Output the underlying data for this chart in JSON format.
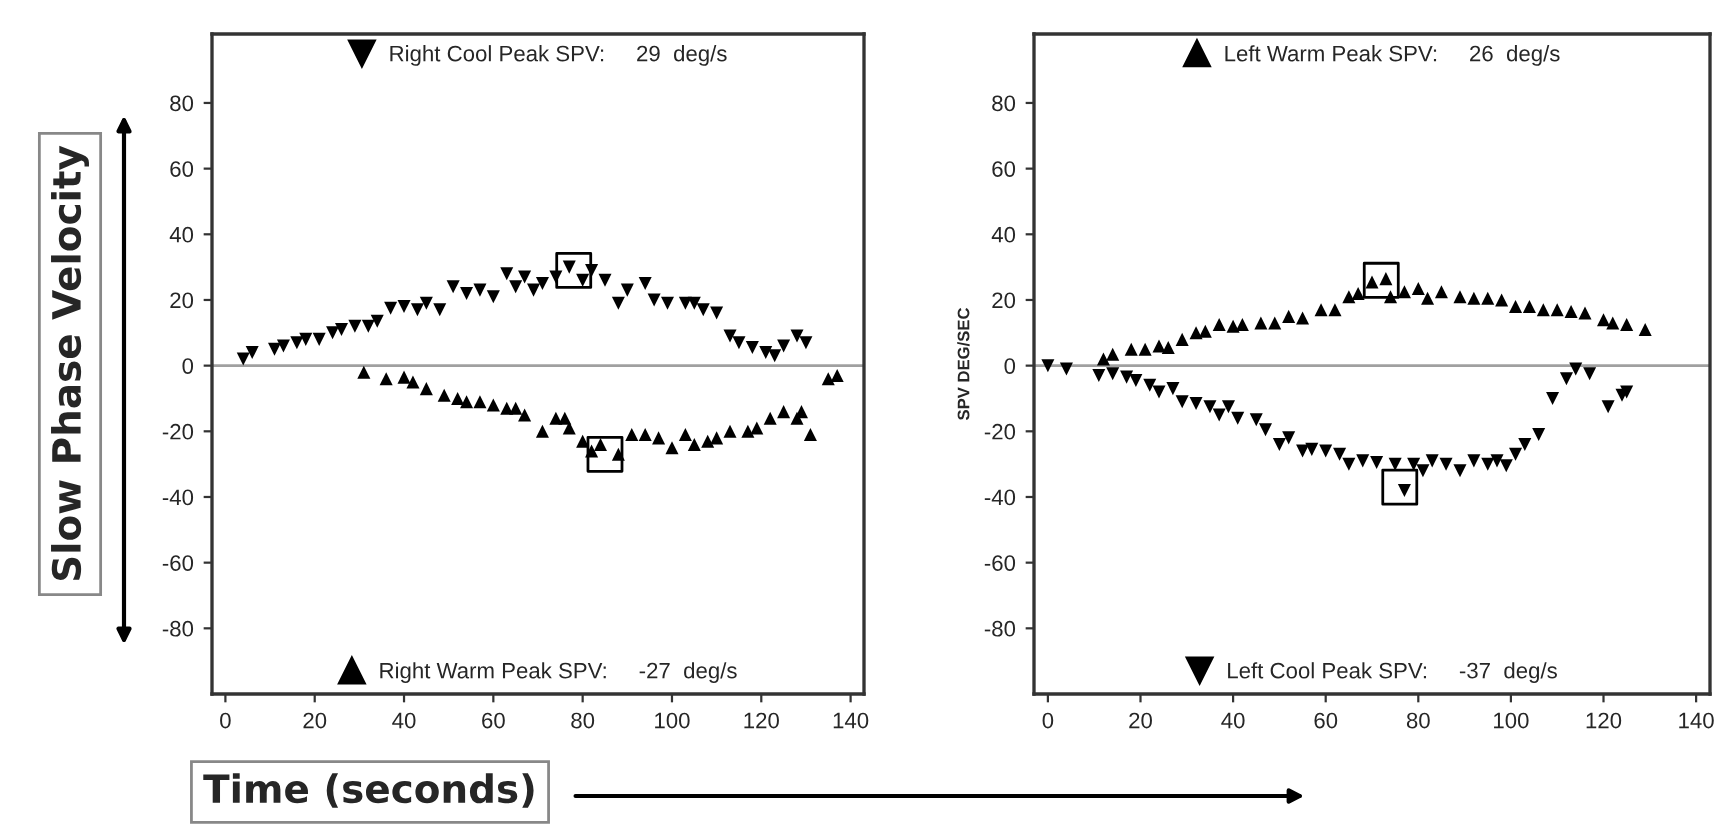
{
  "chart_data": [
    {
      "type": "scatter",
      "xlabel": "Time (seconds)",
      "ylabel": "Slow Phase Velocity",
      "xlim": [
        -3,
        143
      ],
      "ylim": [
        -100,
        101
      ],
      "xticks": [
        0,
        20,
        40,
        60,
        80,
        100,
        120,
        140
      ],
      "yticks": [
        -80,
        -60,
        -40,
        -20,
        0,
        20,
        40,
        60,
        80
      ],
      "legend": [
        "top",
        "bottom"
      ],
      "grid": false,
      "ref_lines": [
        {
          "axis": "y",
          "value": 0,
          "color": "#a0a0a0"
        }
      ],
      "series": [
        {
          "name": "Right Cool Peak SPV:     29  deg/s",
          "color": "#000000",
          "marker": "triangle_down",
          "x": [
            4,
            6,
            11,
            13,
            16,
            18,
            21,
            24,
            26,
            29,
            32,
            34,
            37,
            40,
            43,
            45,
            48,
            51,
            54,
            57,
            60,
            63,
            65,
            67,
            69,
            71,
            74,
            77,
            80,
            82,
            85,
            88,
            90,
            94,
            96,
            99,
            103,
            105,
            107,
            110,
            113,
            115,
            118,
            121,
            123,
            125,
            128,
            130
          ],
          "values": [
            2,
            4,
            5,
            6,
            7,
            8,
            8,
            10,
            11,
            12,
            12,
            13.5,
            17.5,
            18,
            17,
            19,
            17,
            24,
            22,
            23,
            21,
            28,
            24,
            27,
            23,
            25,
            27,
            30,
            26,
            29,
            26,
            19,
            23,
            25,
            20,
            19,
            19,
            19,
            17,
            16,
            9,
            7,
            5.5,
            4,
            3,
            6,
            9,
            7
          ]
        },
        {
          "name": "Right Warm Peak SPV:     -27  deg/s",
          "color": "#000000",
          "marker": "triangle",
          "x": [
            31,
            36,
            40,
            42,
            45,
            49,
            52,
            54,
            57,
            60,
            63,
            65,
            67,
            71,
            74,
            76,
            77,
            80,
            82,
            84,
            88,
            91,
            94,
            97,
            100,
            103,
            105,
            108,
            110,
            113,
            117,
            119,
            122,
            125,
            128,
            129,
            131,
            135,
            137
          ],
          "values": [
            -2,
            -4,
            -3.5,
            -5,
            -7,
            -9,
            -10,
            -11,
            -11,
            -12,
            -13,
            -13,
            -15,
            -20,
            -16,
            -16,
            -19,
            -23,
            -26,
            -24,
            -27,
            -21,
            -21,
            -22,
            -25,
            -21,
            -24,
            -23,
            -22,
            -20,
            -20,
            -19,
            -16,
            -14,
            -16,
            -14,
            -21,
            -4,
            -3
          ]
        },
        {
          "color": "#000000",
          "marker": "square",
          "x": [
            78,
            85
          ],
          "values": [
            29,
            -27
          ]
        }
      ]
    },
    {
      "type": "scatter",
      "ylabel": "SPV DEG/SEC",
      "xlim": [
        -3,
        143
      ],
      "ylim": [
        -100,
        101
      ],
      "xticks": [
        0,
        20,
        40,
        60,
        80,
        100,
        120,
        140
      ],
      "yticks": [
        -80,
        -60,
        -40,
        -20,
        0,
        20,
        40,
        60,
        80
      ],
      "legend": [
        "top",
        "bottom"
      ],
      "grid": false,
      "ref_lines": [
        {
          "axis": "y",
          "value": 0,
          "color": "#a0a0a0"
        }
      ],
      "series": [
        {
          "name": "Left Warm Peak SPV:     26  deg/s",
          "color": "#000000",
          "marker": "triangle",
          "x": [
            12,
            14,
            18,
            21,
            24,
            26,
            29,
            32,
            34,
            37,
            40,
            42,
            46,
            49,
            52,
            55,
            59,
            62,
            65,
            67,
            70,
            73,
            74,
            77,
            80,
            82,
            85,
            89,
            92,
            95,
            98,
            101,
            104,
            107,
            110,
            113,
            116,
            120,
            122,
            125,
            129
          ],
          "values": [
            2,
            3.5,
            5,
            5,
            6,
            5.5,
            8,
            10,
            10.5,
            12.5,
            12,
            12.5,
            13,
            13,
            15,
            14.5,
            17,
            17,
            21,
            22,
            25.5,
            26.5,
            21,
            22.5,
            23.5,
            20.5,
            22.5,
            21,
            20.5,
            20.5,
            20,
            18,
            18,
            17,
            17,
            16.5,
            16,
            14,
            13,
            12.5,
            11
          ]
        },
        {
          "name": "Left Cool Peak SPV:     -37  deg/s",
          "color": "#000000",
          "marker": "triangle_down",
          "x": [
            0,
            4,
            11,
            14,
            17,
            19,
            22,
            24,
            27,
            29,
            32,
            35,
            37,
            39,
            41,
            45,
            47,
            50,
            52,
            55,
            57,
            60,
            63,
            65,
            68,
            71,
            75,
            77,
            79,
            81,
            83,
            86,
            89,
            92,
            95,
            97,
            99,
            101,
            103,
            106,
            109,
            112,
            114,
            117,
            121,
            124,
            125
          ],
          "values": [
            0,
            -1,
            -3,
            -2.5,
            -3.5,
            -4.5,
            -6,
            -8,
            -7,
            -11,
            -11.5,
            -12.5,
            -15,
            -12.5,
            -16,
            -16.5,
            -19.5,
            -24,
            -22,
            -26,
            -25.5,
            -26,
            -27,
            -30,
            -29,
            -29.5,
            -30,
            -38,
            -30,
            -32,
            -29,
            -30,
            -32,
            -29,
            -30,
            -29,
            -30.5,
            -27,
            -24,
            -21,
            -10,
            -4,
            -1,
            -2.5,
            -12.5,
            -9,
            -8
          ]
        },
        {
          "color": "#000000",
          "marker": "square",
          "x": [
            72,
            76
          ],
          "values": [
            26,
            -37
          ]
        }
      ]
    }
  ]
}
